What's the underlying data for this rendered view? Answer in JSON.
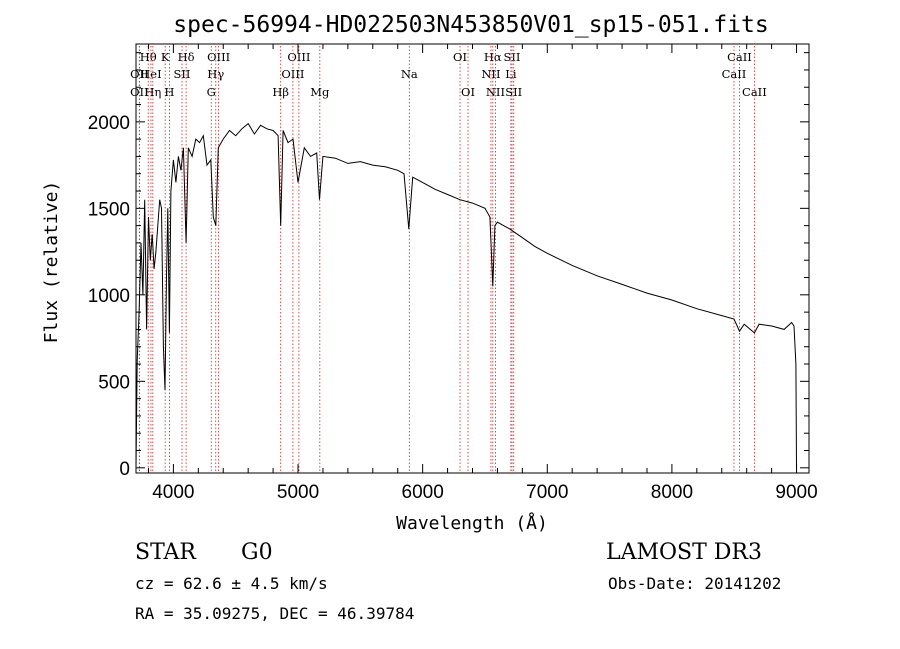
{
  "chart_data": {
    "type": "line",
    "title": "spec-56994-HD022503N453850V01_sp15-051.fits",
    "xlabel": "Wavelength (Å)",
    "ylabel": "Flux (relative)",
    "xlim": [
      3700,
      9100
    ],
    "ylim": [
      -30,
      2450
    ],
    "xticks": [
      4000,
      5000,
      6000,
      7000,
      8000,
      9000
    ],
    "yticks": [
      0,
      500,
      1000,
      1500,
      2000
    ],
    "series": [
      {
        "name": "flux",
        "x": [
          3700,
          3710,
          3725,
          3740,
          3755,
          3770,
          3785,
          3800,
          3815,
          3830,
          3845,
          3860,
          3875,
          3890,
          3905,
          3920,
          3933,
          3945,
          3955,
          3968,
          3980,
          4000,
          4020,
          4040,
          4060,
          4080,
          4102,
          4120,
          4150,
          4180,
          4210,
          4240,
          4270,
          4300,
          4320,
          4340,
          4360,
          4400,
          4450,
          4500,
          4550,
          4600,
          4650,
          4700,
          4750,
          4800,
          4840,
          4861,
          4880,
          4920,
          4960,
          5000,
          5050,
          5100,
          5150,
          5172,
          5200,
          5300,
          5400,
          5500,
          5600,
          5700,
          5800,
          5850,
          5889,
          5893,
          5920,
          6000,
          6100,
          6200,
          6300,
          6400,
          6500,
          6540,
          6563,
          6580,
          6600,
          6700,
          6800,
          6900,
          7000,
          7200,
          7400,
          7600,
          7800,
          8000,
          8200,
          8400,
          8498,
          8542,
          8580,
          8662,
          8700,
          8800,
          8900,
          8960,
          8980,
          8995,
          9000
        ],
        "values": [
          0,
          620,
          900,
          1300,
          1000,
          1550,
          800,
          1450,
          1200,
          1350,
          1150,
          1250,
          1400,
          1550,
          1500,
          700,
          450,
          1100,
          1500,
          780,
          1600,
          1780,
          1650,
          1800,
          1720,
          1850,
          1300,
          1850,
          1800,
          1900,
          1880,
          1920,
          1750,
          1780,
          1450,
          1400,
          1850,
          1900,
          1950,
          1920,
          1960,
          1990,
          1930,
          1980,
          1960,
          1950,
          1920,
          1400,
          1950,
          1880,
          1900,
          1650,
          1850,
          1800,
          1820,
          1550,
          1800,
          1790,
          1760,
          1770,
          1750,
          1740,
          1720,
          1700,
          1380,
          1420,
          1680,
          1650,
          1610,
          1580,
          1550,
          1530,
          1500,
          1450,
          1050,
          1400,
          1420,
          1380,
          1330,
          1280,
          1240,
          1170,
          1110,
          1060,
          1010,
          970,
          920,
          880,
          860,
          790,
          830,
          780,
          830,
          820,
          800,
          840,
          820,
          600,
          0
        ]
      }
    ],
    "line_markers": [
      {
        "label": "Hθ",
        "x": 3798,
        "row": 1
      },
      {
        "label": "OII",
        "x": 3727,
        "row": 2
      },
      {
        "label": "OII",
        "x": 3727,
        "row": 3
      },
      {
        "label": "HeI",
        "x": 3820,
        "row": 2
      },
      {
        "label": "Hη",
        "x": 3835,
        "row": 3
      },
      {
        "label": "K",
        "x": 3934,
        "row": 1
      },
      {
        "label": "SII",
        "x": 4069,
        "row": 2
      },
      {
        "label": "H",
        "x": 3968,
        "row": 3
      },
      {
        "label": "Hδ",
        "x": 4102,
        "row": 1
      },
      {
        "label": "OIII",
        "x": 4363,
        "row": 1
      },
      {
        "label": "Hγ",
        "x": 4340,
        "row": 2
      },
      {
        "label": "G",
        "x": 4304,
        "row": 3
      },
      {
        "label": "Hβ",
        "x": 4861,
        "row": 3
      },
      {
        "label": "OIII",
        "x": 5007,
        "row": 1
      },
      {
        "label": "OIII",
        "x": 4959,
        "row": 2
      },
      {
        "label": "Mg",
        "x": 5175,
        "row": 3
      },
      {
        "label": "Na",
        "x": 5893,
        "row": 2
      },
      {
        "label": "OI",
        "x": 6300,
        "row": 1
      },
      {
        "label": "OI",
        "x": 6364,
        "row": 3
      },
      {
        "label": "Hα",
        "x": 6563,
        "row": 1
      },
      {
        "label": "NII",
        "x": 6548,
        "row": 2
      },
      {
        "label": "NII",
        "x": 6584,
        "row": 3
      },
      {
        "label": "SII",
        "x": 6717,
        "row": 1
      },
      {
        "label": "Li",
        "x": 6708,
        "row": 2
      },
      {
        "label": "SII",
        "x": 6731,
        "row": 3
      },
      {
        "label": "CaII",
        "x": 8542,
        "row": 1
      },
      {
        "label": "CaII",
        "x": 8498,
        "row": 2
      },
      {
        "label": "CaII",
        "x": 8662,
        "row": 3
      }
    ]
  },
  "info": {
    "class_label": "STAR",
    "subclass": "G0",
    "survey": "LAMOST DR3",
    "cz_text": "cz = 62.6 ± 4.5 km/s",
    "obs_date": "Obs-Date: 20141202",
    "coords": "RA =  35.09275, DEC =  46.39784"
  }
}
